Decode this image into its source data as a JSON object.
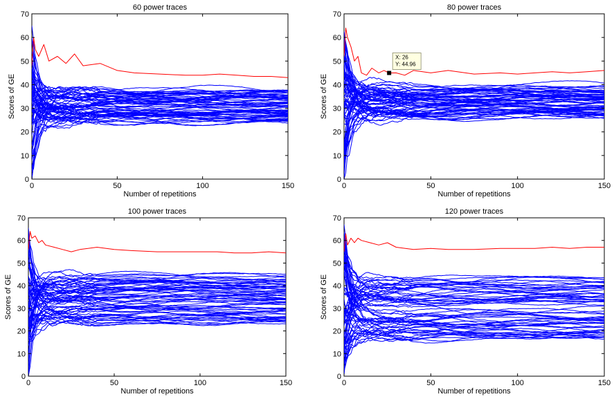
{
  "chart_data": [
    {
      "type": "line",
      "title": "60 power traces",
      "xlabel": "Number of repetitions",
      "ylabel": "Scores of GE",
      "xlim": [
        0,
        150
      ],
      "ylim": [
        0,
        70
      ],
      "xticks": [
        "0",
        "50",
        "100",
        "150"
      ],
      "yticks": [
        "0",
        "10",
        "20",
        "30",
        "40",
        "50",
        "60",
        "70"
      ],
      "colors": {
        "highlight": "#ff0000",
        "others": "#0000ff"
      },
      "highlight_series": {
        "x": [
          0,
          1,
          2,
          4,
          7,
          10,
          15,
          20,
          25,
          30,
          40,
          50,
          60,
          75,
          90,
          100,
          110,
          120,
          130,
          140,
          150
        ],
        "values": [
          48,
          60,
          55,
          52,
          57,
          50,
          52,
          49,
          53,
          48,
          49,
          46,
          45,
          44.5,
          44,
          44,
          44.5,
          44,
          43.5,
          43.5,
          43
        ]
      },
      "background_series": {
        "count": 64,
        "converged_range": [
          24,
          38
        ],
        "initial_range": [
          0,
          64
        ]
      }
    },
    {
      "type": "line",
      "title": "80 power traces",
      "xlabel": "Number of repetitions",
      "ylabel": "Scores of GE",
      "xlim": [
        0,
        150
      ],
      "ylim": [
        0,
        70
      ],
      "xticks": [
        "0",
        "50",
        "100",
        "150"
      ],
      "yticks": [
        "0",
        "10",
        "20",
        "30",
        "40",
        "50",
        "60",
        "70"
      ],
      "colors": {
        "highlight": "#ff0000",
        "others": "#0000ff"
      },
      "highlight_series": {
        "x": [
          0,
          1,
          2,
          4,
          6,
          8,
          10,
          13,
          16,
          20,
          23,
          26,
          30,
          35,
          40,
          50,
          60,
          75,
          90,
          100,
          110,
          120,
          130,
          140,
          150
        ],
        "values": [
          52,
          64,
          60,
          56,
          50,
          52,
          45,
          44,
          47,
          45,
          46,
          44.96,
          45,
          44,
          46,
          45,
          46,
          44.5,
          45,
          44.5,
          45,
          45.5,
          45,
          45.5,
          46
        ]
      },
      "background_series": {
        "count": 64,
        "converged_range": [
          26,
          40
        ],
        "initial_range": [
          0,
          64
        ]
      },
      "annotation": {
        "x": 26,
        "y": 44.96,
        "lines": [
          "X: 26",
          "Y: 44.96"
        ]
      }
    },
    {
      "type": "line",
      "title": "100 power traces",
      "xlabel": "Number of repetitions",
      "ylabel": "Scores of GE",
      "xlim": [
        0,
        150
      ],
      "ylim": [
        0,
        70
      ],
      "xticks": [
        "0",
        "50",
        "100",
        "150"
      ],
      "yticks": [
        "0",
        "10",
        "20",
        "30",
        "40",
        "50",
        "60",
        "70"
      ],
      "colors": {
        "highlight": "#ff0000",
        "others": "#0000ff"
      },
      "highlight_series": {
        "x": [
          0,
          1,
          2,
          4,
          6,
          8,
          10,
          15,
          20,
          25,
          30,
          40,
          50,
          60,
          75,
          90,
          100,
          110,
          120,
          130,
          140,
          150
        ],
        "values": [
          56,
          64,
          61,
          62,
          59,
          60,
          58,
          57,
          56,
          55,
          56,
          57,
          56,
          55.5,
          55,
          55,
          55,
          55,
          54.5,
          54.5,
          55,
          54.5
        ]
      },
      "background_series": {
        "count": 64,
        "converged_range": [
          24,
          45
        ],
        "initial_range": [
          0,
          64
        ]
      }
    },
    {
      "type": "line",
      "title": "120 power traces",
      "xlabel": "Number of repetitions",
      "ylabel": "Scores of GE",
      "xlim": [
        0,
        150
      ],
      "ylim": [
        0,
        70
      ],
      "xticks": [
        "0",
        "50",
        "100",
        "150"
      ],
      "yticks": [
        "0",
        "10",
        "20",
        "30",
        "40",
        "50",
        "60",
        "70"
      ],
      "colors": {
        "highlight": "#ff0000",
        "others": "#0000ff"
      },
      "highlight_series": {
        "x": [
          0,
          1,
          2,
          4,
          6,
          8,
          10,
          15,
          20,
          25,
          30,
          40,
          50,
          60,
          75,
          90,
          100,
          110,
          120,
          130,
          140,
          150
        ],
        "values": [
          55,
          63,
          58,
          61,
          59,
          61,
          60,
          59,
          58,
          59,
          57,
          56,
          56.5,
          56,
          56,
          56.5,
          56.5,
          56.5,
          57,
          56.5,
          57,
          57
        ]
      },
      "background_series": {
        "count": 64,
        "converged_range": [
          17,
          44
        ],
        "initial_range": [
          0,
          64
        ]
      }
    }
  ]
}
